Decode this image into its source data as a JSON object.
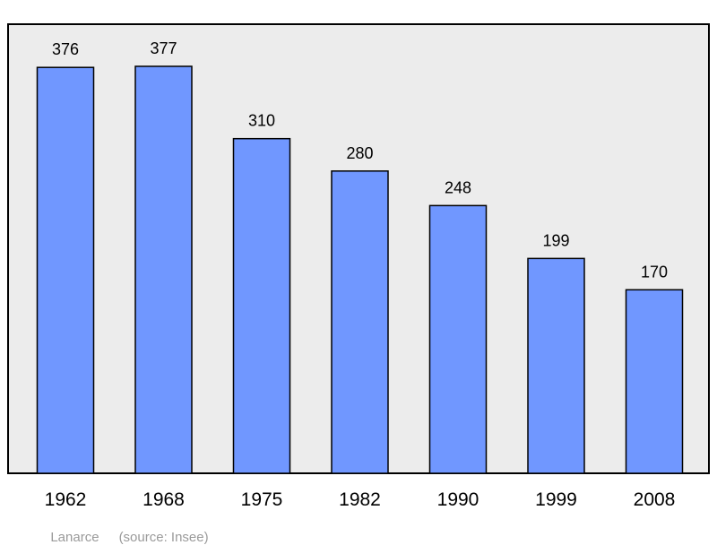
{
  "chart_data": {
    "type": "bar",
    "categories": [
      "1962",
      "1968",
      "1975",
      "1982",
      "1990",
      "1999",
      "2008"
    ],
    "values": [
      376,
      377,
      310,
      280,
      248,
      199,
      170
    ],
    "data_labels": [
      "376",
      "377",
      "310",
      "280",
      "248",
      "199",
      "170"
    ],
    "title": "",
    "xlabel": "",
    "ylabel": "",
    "ylim": [
      0,
      420
    ],
    "grid": false,
    "legend": "none",
    "colors": {
      "bar_fill": "#7097ff",
      "bar_stroke": "#000000",
      "plot_background": "#ececec",
      "frame": "#000000",
      "text": "#000000",
      "footer_text": "#9a9a9a"
    }
  },
  "footer": {
    "place": "Lanarce",
    "source": "(source: Insee)"
  }
}
